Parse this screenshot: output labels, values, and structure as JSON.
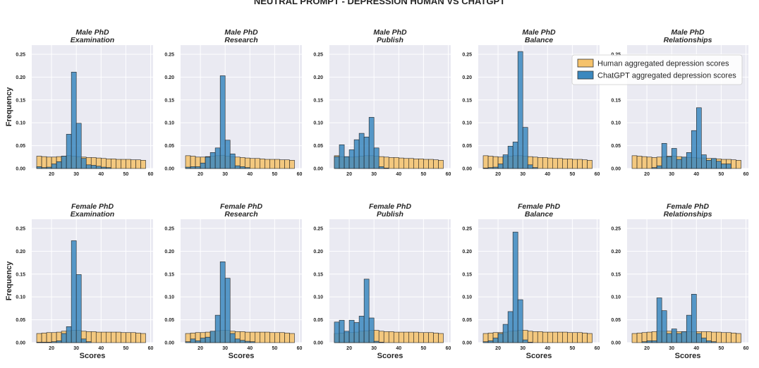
{
  "chart_data": {
    "type": "histogram-grid",
    "title": "NEUTRAL PROMPT - DEPRESSION HUMAN VS CHATGPT",
    "xlabel": "Scores",
    "ylabel": "Frequency",
    "xlim": [
      12,
      61
    ],
    "ylim": [
      0,
      0.27
    ],
    "xticks": [
      20,
      30,
      40,
      50,
      60
    ],
    "yticks": [
      0.0,
      0.05,
      0.1,
      0.15,
      0.2,
      0.25
    ],
    "ytick_labels": [
      "0.00",
      "0.05",
      "0.10",
      "0.15",
      "0.20",
      "0.25"
    ],
    "bin_start": 14,
    "bin_width": 2,
    "legend": {
      "location": "upper right",
      "entries": [
        {
          "label": "Human aggregated depression scores",
          "color": "#f5c26b"
        },
        {
          "label": "ChatGPT aggregated depression scores",
          "color": "#3b88bf"
        }
      ]
    },
    "panels": [
      {
        "title_line1": "Male PhD",
        "title_line2": "Examination",
        "human": [
          0.027,
          0.026,
          0.025,
          0.025,
          0.026,
          0.027,
          0.028,
          0.027,
          0.026,
          0.025,
          0.024,
          0.024,
          0.023,
          0.022,
          0.021,
          0.021,
          0.02,
          0.02,
          0.02,
          0.019,
          0.019,
          0.018
        ],
        "chatgpt": [
          0.004,
          0.002,
          0.003,
          0.01,
          0.015,
          0.027,
          0.075,
          0.211,
          0.099,
          0.022,
          0.008,
          0.007,
          0.005,
          0.003,
          0.002,
          0,
          0,
          0,
          0,
          0,
          0,
          0
        ]
      },
      {
        "title_line1": "Male PhD",
        "title_line2": "Research",
        "human": [
          0.028,
          0.027,
          0.025,
          0.025,
          0.026,
          0.027,
          0.028,
          0.029,
          0.027,
          0.026,
          0.025,
          0.024,
          0.023,
          0.022,
          0.022,
          0.021,
          0.02,
          0.02,
          0.02,
          0.019,
          0.019,
          0.018
        ],
        "chatgpt": [
          0.003,
          0.004,
          0.004,
          0.012,
          0.025,
          0.035,
          0.045,
          0.203,
          0.062,
          0.032,
          0.006,
          0.004,
          0.002,
          0,
          0,
          0,
          0,
          0,
          0,
          0,
          0,
          0
        ]
      },
      {
        "title_line1": "Male PhD",
        "title_line2": "Publish",
        "human": [
          0.028,
          0.026,
          0.025,
          0.025,
          0.026,
          0.027,
          0.028,
          0.028,
          0.027,
          0.026,
          0.025,
          0.024,
          0.024,
          0.023,
          0.022,
          0.022,
          0.021,
          0.021,
          0.02,
          0.02,
          0.019,
          0.018
        ],
        "chatgpt": [
          0.026,
          0.052,
          0.026,
          0.041,
          0.063,
          0.077,
          0.069,
          0.112,
          0.045,
          0.004,
          0.001,
          0,
          0,
          0,
          0,
          0,
          0,
          0,
          0,
          0,
          0,
          0
        ]
      },
      {
        "title_line1": "Male PhD",
        "title_line2": "Balance",
        "human": [
          0.028,
          0.027,
          0.026,
          0.025,
          0.026,
          0.027,
          0.028,
          0.028,
          0.027,
          0.026,
          0.025,
          0.024,
          0.024,
          0.023,
          0.022,
          0.022,
          0.021,
          0.021,
          0.02,
          0.02,
          0.019,
          0.018
        ],
        "chatgpt": [
          0.001,
          0.002,
          0.003,
          0.01,
          0.03,
          0.049,
          0.058,
          0.256,
          0.09,
          0.008,
          0.002,
          0,
          0,
          0,
          0,
          0,
          0,
          0,
          0,
          0,
          0,
          0
        ]
      },
      {
        "title_line1": "Male PhD",
        "title_line2": "Relationships",
        "human": [
          0.028,
          0.027,
          0.026,
          0.025,
          0.024,
          0.025,
          0.026,
          0.027,
          0.027,
          0.026,
          0.025,
          0.024,
          0.024,
          0.023,
          0.023,
          0.022,
          0.021,
          0.021,
          0.02,
          0.02,
          0.019,
          0.018
        ],
        "chatgpt": [
          0,
          0,
          0,
          0,
          0.002,
          0.006,
          0.055,
          0.026,
          0.044,
          0.02,
          0.025,
          0.035,
          0.083,
          0.133,
          0.03,
          0.018,
          0.022,
          0.016,
          0.01,
          0.01,
          0,
          0
        ]
      },
      {
        "title_line1": "Female PhD",
        "title_line2": "Examination",
        "human": [
          0.02,
          0.021,
          0.022,
          0.022,
          0.023,
          0.025,
          0.026,
          0.027,
          0.027,
          0.025,
          0.024,
          0.024,
          0.023,
          0.023,
          0.023,
          0.023,
          0.023,
          0.022,
          0.022,
          0.022,
          0.021,
          0.02
        ],
        "chatgpt": [
          0.001,
          0.001,
          0.001,
          0.002,
          0.004,
          0.02,
          0.035,
          0.223,
          0.149,
          0.008,
          0.002,
          0,
          0,
          0,
          0,
          0,
          0,
          0,
          0,
          0,
          0,
          0
        ]
      },
      {
        "title_line1": "Female PhD",
        "title_line2": "Research",
        "human": [
          0.02,
          0.021,
          0.022,
          0.022,
          0.023,
          0.025,
          0.026,
          0.027,
          0.027,
          0.025,
          0.024,
          0.024,
          0.023,
          0.023,
          0.023,
          0.023,
          0.023,
          0.022,
          0.022,
          0.022,
          0.021,
          0.02
        ],
        "chatgpt": [
          0.002,
          0.008,
          0.004,
          0.01,
          0.012,
          0.025,
          0.06,
          0.177,
          0.141,
          0.02,
          0.008,
          0.005,
          0.003,
          0.002,
          0,
          0,
          0,
          0,
          0,
          0,
          0,
          0
        ]
      },
      {
        "title_line1": "Female PhD",
        "title_line2": "Publish",
        "human": [
          0.02,
          0.021,
          0.022,
          0.022,
          0.023,
          0.025,
          0.026,
          0.027,
          0.027,
          0.025,
          0.024,
          0.024,
          0.023,
          0.023,
          0.023,
          0.023,
          0.023,
          0.022,
          0.022,
          0.022,
          0.021,
          0.02
        ],
        "chatgpt": [
          0.045,
          0.049,
          0.025,
          0.049,
          0.044,
          0.058,
          0.139,
          0.054,
          0.003,
          0.001,
          0,
          0,
          0,
          0,
          0,
          0,
          0,
          0,
          0,
          0,
          0,
          0
        ]
      },
      {
        "title_line1": "Female PhD",
        "title_line2": "Balance",
        "human": [
          0.02,
          0.021,
          0.022,
          0.022,
          0.023,
          0.025,
          0.026,
          0.027,
          0.027,
          0.025,
          0.024,
          0.024,
          0.023,
          0.023,
          0.023,
          0.023,
          0.023,
          0.022,
          0.022,
          0.022,
          0.021,
          0.02
        ],
        "chatgpt": [
          0.002,
          0.004,
          0.01,
          0.02,
          0.04,
          0.068,
          0.242,
          0.094,
          0.006,
          0.001,
          0,
          0,
          0,
          0,
          0,
          0,
          0,
          0,
          0,
          0,
          0,
          0
        ]
      },
      {
        "title_line1": "Female PhD",
        "title_line2": "Relationships",
        "human": [
          0.02,
          0.021,
          0.022,
          0.023,
          0.024,
          0.025,
          0.025,
          0.025,
          0.025,
          0.024,
          0.024,
          0.024,
          0.024,
          0.024,
          0.024,
          0.024,
          0.023,
          0.023,
          0.022,
          0.022,
          0.021,
          0.02
        ],
        "chatgpt": [
          0,
          0,
          0.002,
          0.004,
          0.004,
          0.098,
          0.07,
          0.02,
          0.03,
          0.02,
          0.024,
          0.06,
          0.106,
          0.02,
          0.01,
          0.004,
          0.002,
          0,
          0,
          0,
          0,
          0
        ]
      }
    ]
  }
}
